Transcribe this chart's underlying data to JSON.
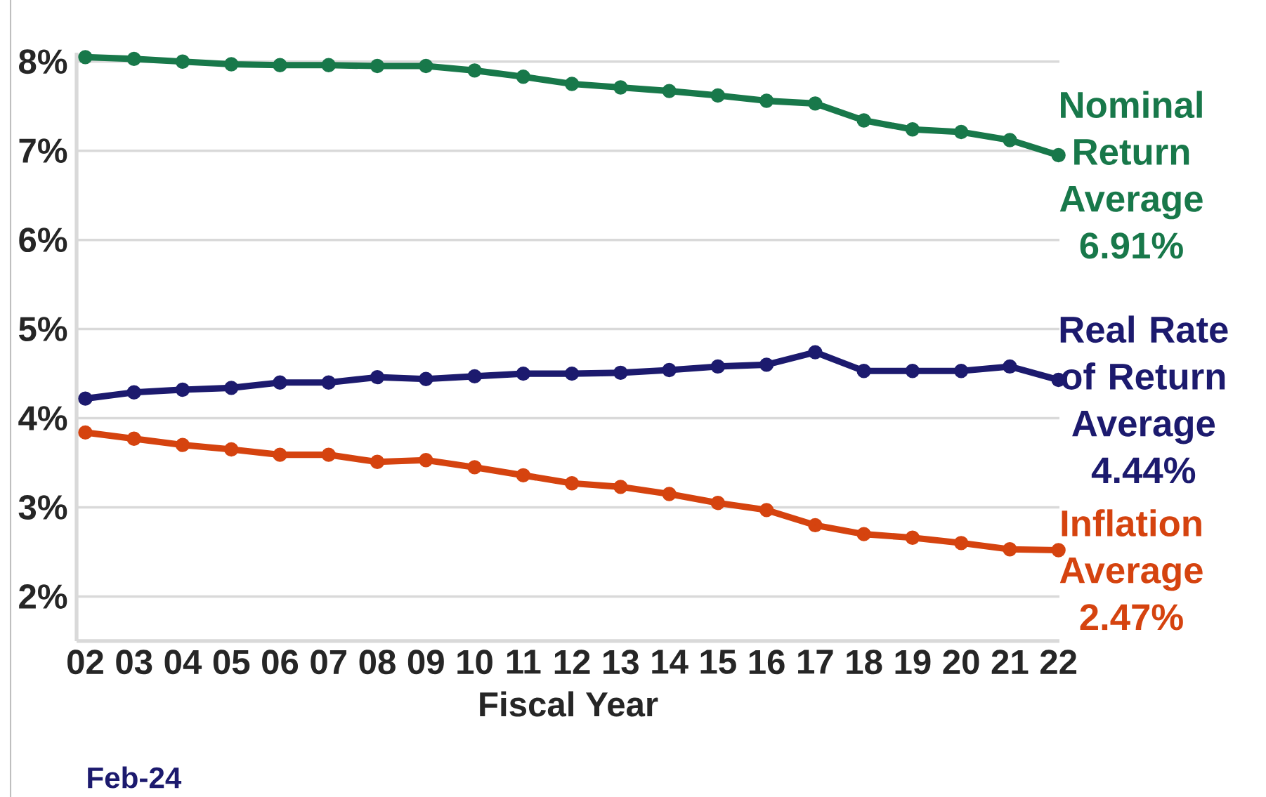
{
  "chart_data": {
    "type": "line",
    "xlabel": "Fiscal Year",
    "categories": [
      "02",
      "03",
      "04",
      "05",
      "06",
      "07",
      "08",
      "09",
      "10",
      "11",
      "12",
      "13",
      "14",
      "15",
      "16",
      "17",
      "18",
      "19",
      "20",
      "21",
      "22"
    ],
    "series": [
      {
        "name": "Nominal Return Average 6.91%",
        "color": "#18784a",
        "values": [
          8.05,
          8.03,
          8.0,
          7.97,
          7.96,
          7.96,
          7.95,
          7.95,
          7.9,
          7.83,
          7.75,
          7.71,
          7.67,
          7.62,
          7.56,
          7.53,
          7.34,
          7.24,
          7.21,
          7.12,
          6.95
        ]
      },
      {
        "name": "Real Rate of Return Average 4.44%",
        "color": "#1c1a6e",
        "values": [
          4.22,
          4.29,
          4.32,
          4.34,
          4.4,
          4.4,
          4.46,
          4.44,
          4.47,
          4.5,
          4.5,
          4.51,
          4.54,
          4.58,
          4.6,
          4.74,
          4.53,
          4.53,
          4.53,
          4.58,
          4.43
        ]
      },
      {
        "name": "Inflation Average 2.47%",
        "color": "#d5430f",
        "values": [
          3.84,
          3.77,
          3.7,
          3.65,
          3.59,
          3.59,
          3.51,
          3.53,
          3.45,
          3.36,
          3.27,
          3.23,
          3.15,
          3.05,
          2.97,
          2.8,
          2.7,
          2.66,
          2.6,
          2.53,
          2.52
        ]
      }
    ],
    "ylim": [
      1.5,
      8.1
    ],
    "yticks": [
      {
        "value": 2,
        "label": "2%"
      },
      {
        "value": 3,
        "label": "3%"
      },
      {
        "value": 4,
        "label": "4%"
      },
      {
        "value": 5,
        "label": "5%"
      },
      {
        "value": 6,
        "label": "6%"
      },
      {
        "value": 7,
        "label": "7%"
      },
      {
        "value": 8,
        "label": "8%"
      }
    ],
    "grid": "y",
    "marker": "circle",
    "line_style": "solid",
    "legend": false,
    "annotations": [
      "Feb-24"
    ]
  }
}
